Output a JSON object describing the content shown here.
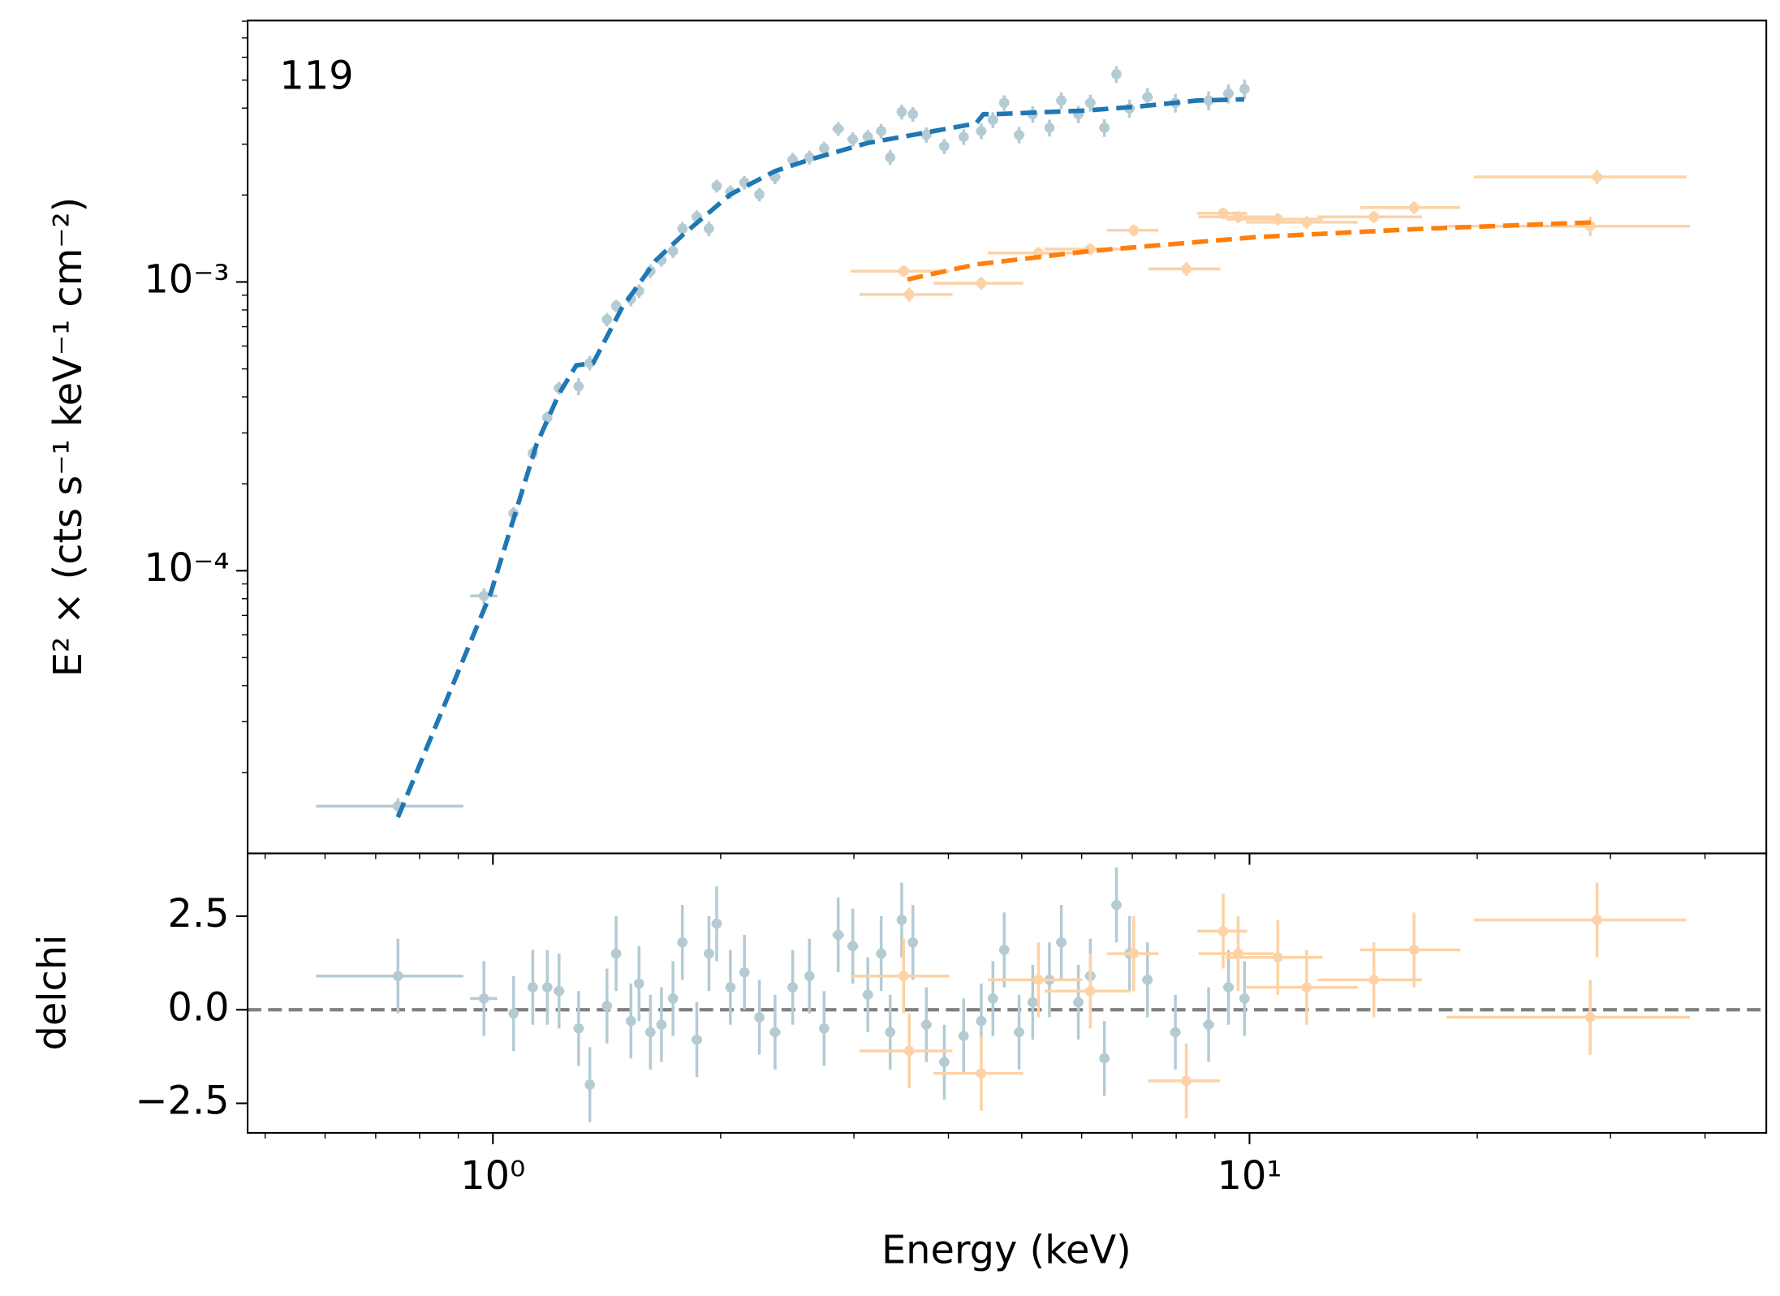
{
  "chart_data": [
    {
      "type": "scatter",
      "annotation": "119",
      "ylabel": "E² × (cts s⁻¹ keV⁻¹ cm⁻²)",
      "xscale": "log",
      "yscale": "log",
      "xlim": [
        0.474,
        48.2
      ],
      "ylim": [
        1.05e-05,
        0.00804
      ],
      "yticks": [
        {
          "value": 0.0001,
          "label": "10⁻⁴"
        },
        {
          "value": 0.001,
          "label": "10⁻³"
        }
      ],
      "yminorticks": [
        2e-05,
        3e-05,
        4e-05,
        5e-05,
        6e-05,
        7e-05,
        8e-05,
        9e-05,
        0.0002,
        0.0003,
        0.0004,
        0.0005,
        0.0006,
        0.0007,
        0.0008,
        0.0009,
        0.002,
        0.003,
        0.004,
        0.005,
        0.006,
        0.007,
        0.008
      ],
      "series": [
        {
          "color": "#b4cbd4",
          "x": [
            0.749,
            0.973,
            1.065,
            1.129,
            1.18,
            1.223,
            1.298,
            1.343,
            1.415,
            1.455,
            1.522,
            1.56,
            1.615,
            1.67,
            1.73,
            1.78,
            1.86,
            1.93,
            1.976,
            2.06,
            2.15,
            2.25,
            2.36,
            2.49,
            2.62,
            2.74,
            2.86,
            2.99,
            3.13,
            3.26,
            3.35,
            3.47,
            3.59,
            3.74,
            3.95,
            4.19,
            4.42,
            4.58,
            4.74,
            4.96,
            5.17,
            5.44,
            5.64,
            5.94,
            6.16,
            6.43,
            6.67,
            6.94,
            7.33,
            7.98,
            8.83,
            9.38,
            9.85
          ],
          "values": [
            1.53e-05,
            8.18e-05,
            0.000158,
            0.000255,
            0.000339,
            0.000429,
            0.000435,
            0.000524,
            0.000741,
            0.000826,
            0.000873,
            0.00093,
            0.00109,
            0.00119,
            0.00128,
            0.00153,
            0.00168,
            0.00153,
            0.00215,
            0.00205,
            0.00221,
            0.00201,
            0.00231,
            0.00265,
            0.0027,
            0.0029,
            0.00339,
            0.00312,
            0.00318,
            0.00333,
            0.0027,
            0.00388,
            0.00381,
            0.00323,
            0.00295,
            0.00318,
            0.00333,
            0.00364,
            0.00417,
            0.00323,
            0.00381,
            0.00342,
            0.00425,
            0.00381,
            0.00417,
            0.00342,
            0.00524,
            0.00399,
            0.00437,
            0.00417,
            0.00425,
            0.00449,
            0.00466
          ],
          "xerr": [
            0.165,
            0.04,
            0.015,
            0.015,
            0.015,
            0.02,
            0.02,
            0.02,
            0.02,
            0.02,
            0.02,
            0.02,
            0.025,
            0.025,
            0.025,
            0.025,
            0.03,
            0.03,
            0.03,
            0.03,
            0.03,
            0.03,
            0.04,
            0.04,
            0.04,
            0.04,
            0.05,
            0.05,
            0.05,
            0.05,
            0.05,
            0.05,
            0.05,
            0.06,
            0.06,
            0.06,
            0.07,
            0.07,
            0.07,
            0.08,
            0.08,
            0.08,
            0.09,
            0.09,
            0.1,
            0.1,
            0.1,
            0.11,
            0.12,
            0.13,
            0.15,
            0.15,
            0.15
          ],
          "yerr": [
            1e-06,
            5e-06,
            8e-06,
            1.3e-05,
            1.7e-05,
            2.2e-05,
            3e-05,
            3e-05,
            4e-05,
            4e-05,
            5e-05,
            5e-05,
            6e-05,
            6e-05,
            7e-05,
            8e-05,
            9e-05,
            9e-05,
            0.00011,
            0.00011,
            0.00012,
            0.00011,
            0.00013,
            0.00015,
            0.00015,
            0.00016,
            0.00019,
            0.00018,
            0.00018,
            0.00019,
            0.00016,
            0.00023,
            0.00022,
            0.0002,
            0.00018,
            0.0002,
            0.00021,
            0.00023,
            0.00026,
            0.00021,
            0.00025,
            0.00023,
            0.00028,
            0.00026,
            0.00028,
            0.00024,
            0.00035,
            0.00029,
            0.00032,
            0.00031,
            0.00032,
            0.00034,
            0.00036
          ]
        },
        {
          "color": "#fdd2a6",
          "x": [
            3.49,
            3.55,
            4.42,
            5.26,
            6.16,
            7.03,
            8.25,
            9.23,
            9.66,
            10.9,
            11.9,
            14.6,
            16.5,
            28.8,
            28.2
          ],
          "values": [
            0.00109,
            0.000905,
            0.00099,
            0.00126,
            0.0013,
            0.00151,
            0.00111,
            0.00173,
            0.00168,
            0.00165,
            0.00161,
            0.00168,
            0.00181,
            0.00231,
            0.00156
          ],
          "xerr": [
            0.52,
            0.5,
            0.6,
            0.75,
            0.8,
            0.55,
            0.9,
            0.7,
            1.1,
            1.6,
            2.0,
            2.3,
            2.5,
            9,
            10
          ],
          "yerr": [
            5e-05,
            5e-05,
            5e-05,
            6e-05,
            6e-05,
            7e-05,
            6e-05,
            8e-05,
            8e-05,
            8e-05,
            8e-05,
            8e-05,
            9e-05,
            0.00013,
            0.00012
          ]
        }
      ],
      "models": [
        {
          "color": "#1f77b4",
          "x": [
            0.749,
            0.993,
            1.141,
            1.223,
            1.289,
            1.357,
            1.48,
            1.643,
            1.79,
            2.06,
            2.36,
            2.62,
            3.13,
            3.59,
            4.35,
            4.45,
            4.58,
            6.05,
            7.19,
            8.53,
            9.84
          ],
          "values": [
            1.4e-05,
            8.34e-05,
            0.000272,
            0.00041,
            0.000514,
            0.000524,
            0.000811,
            0.00119,
            0.00147,
            0.00201,
            0.00242,
            0.00265,
            0.00303,
            0.00323,
            0.00354,
            0.00381,
            0.00381,
            0.00392,
            0.00406,
            0.00425,
            0.00429
          ]
        },
        {
          "color": "#ff7f0e",
          "x": [
            3.53,
            4.35,
            6.16,
            10.2,
            17.1,
            28.8
          ],
          "values": [
            0.00102,
            0.00115,
            0.00128,
            0.00143,
            0.00153,
            0.00161
          ]
        }
      ]
    },
    {
      "type": "scatter",
      "xlabel": "Energy (keV)",
      "ylabel": "delchi",
      "xscale": "log",
      "yscale": "linear",
      "xlim": [
        0.474,
        48.2
      ],
      "ylim": [
        -3.29,
        4.18
      ],
      "xticks": [
        {
          "value": 1,
          "label": "10⁰"
        },
        {
          "value": 10,
          "label": "10¹"
        }
      ],
      "xminorticks": [
        0.5,
        0.6,
        0.7,
        0.8,
        0.9,
        2,
        3,
        4,
        5,
        6,
        7,
        8,
        9,
        20,
        30,
        40
      ],
      "yticks": [
        {
          "value": -2.5,
          "label": "−2.5"
        },
        {
          "value": 0,
          "label": "0.0"
        },
        {
          "value": 2.5,
          "label": "2.5"
        }
      ],
      "hline": 0,
      "hline_color": "#808080",
      "series": [
        {
          "color": "#b4cbd4",
          "x": [
            0.749,
            0.973,
            1.065,
            1.129,
            1.18,
            1.223,
            1.298,
            1.343,
            1.415,
            1.455,
            1.522,
            1.56,
            1.615,
            1.67,
            1.73,
            1.78,
            1.86,
            1.93,
            1.976,
            2.06,
            2.15,
            2.25,
            2.36,
            2.49,
            2.62,
            2.74,
            2.86,
            2.99,
            3.13,
            3.26,
            3.35,
            3.47,
            3.59,
            3.74,
            3.95,
            4.19,
            4.42,
            4.58,
            4.74,
            4.96,
            5.17,
            5.44,
            5.64,
            5.94,
            6.16,
            6.43,
            6.67,
            6.94,
            7.33,
            7.98,
            8.83,
            9.38,
            9.85
          ],
          "values": [
            0.9,
            0.3,
            -0.1,
            0.6,
            0.6,
            0.5,
            -0.5,
            -2.0,
            0.1,
            1.5,
            -0.3,
            0.7,
            -0.6,
            -0.4,
            0.3,
            1.8,
            -0.8,
            1.5,
            2.3,
            0.6,
            1.0,
            -0.2,
            -0.6,
            0.6,
            0.9,
            -0.5,
            2.0,
            1.7,
            0.4,
            1.5,
            -0.6,
            2.4,
            1.8,
            -0.4,
            -1.4,
            -0.7,
            -0.3,
            0.3,
            1.6,
            -0.6,
            0.2,
            0.8,
            1.8,
            0.2,
            0.9,
            -1.3,
            2.8,
            1.5,
            0.8,
            -0.6,
            -0.4,
            0.6,
            0.3
          ],
          "xerr": [
            0.165,
            0.04,
            0.015,
            0.015,
            0.015,
            0.02,
            0.02,
            0.02,
            0.02,
            0.02,
            0.02,
            0.02,
            0.025,
            0.025,
            0.025,
            0.025,
            0.03,
            0.03,
            0.03,
            0.03,
            0.03,
            0.03,
            0.04,
            0.04,
            0.04,
            0.04,
            0.05,
            0.05,
            0.05,
            0.05,
            0.05,
            0.05,
            0.05,
            0.06,
            0.06,
            0.06,
            0.07,
            0.07,
            0.07,
            0.08,
            0.08,
            0.08,
            0.09,
            0.09,
            0.1,
            0.1,
            0.1,
            0.11,
            0.12,
            0.13,
            0.15,
            0.15,
            0.15
          ],
          "yerr": [
            1,
            1,
            1,
            1,
            1,
            1,
            1,
            1,
            1,
            1,
            1,
            1,
            1,
            1,
            1,
            1,
            1,
            1,
            1,
            1,
            1,
            1,
            1,
            1,
            1,
            1,
            1,
            1,
            1,
            1,
            1,
            1,
            1,
            1,
            1,
            1,
            1,
            1,
            1,
            1,
            1,
            1,
            1,
            1,
            1,
            1,
            1,
            1,
            1,
            1,
            1,
            1,
            1
          ]
        },
        {
          "color": "#fdd2a6",
          "x": [
            3.49,
            3.55,
            4.42,
            5.26,
            6.16,
            7.03,
            8.25,
            9.23,
            9.66,
            10.9,
            11.9,
            14.6,
            16.5,
            28.8,
            28.2
          ],
          "values": [
            0.9,
            -1.1,
            -1.7,
            0.8,
            0.5,
            1.5,
            -1.9,
            2.1,
            1.5,
            1.4,
            0.6,
            0.8,
            1.6,
            2.4,
            -0.2
          ],
          "xerr": [
            0.52,
            0.5,
            0.6,
            0.75,
            0.8,
            0.55,
            0.9,
            0.7,
            1.1,
            1.6,
            2.0,
            2.3,
            2.5,
            9,
            10
          ],
          "yerr": [
            1,
            1,
            1,
            1,
            1,
            1,
            1,
            1,
            1,
            1,
            1,
            1,
            1,
            1,
            1
          ]
        }
      ]
    }
  ]
}
